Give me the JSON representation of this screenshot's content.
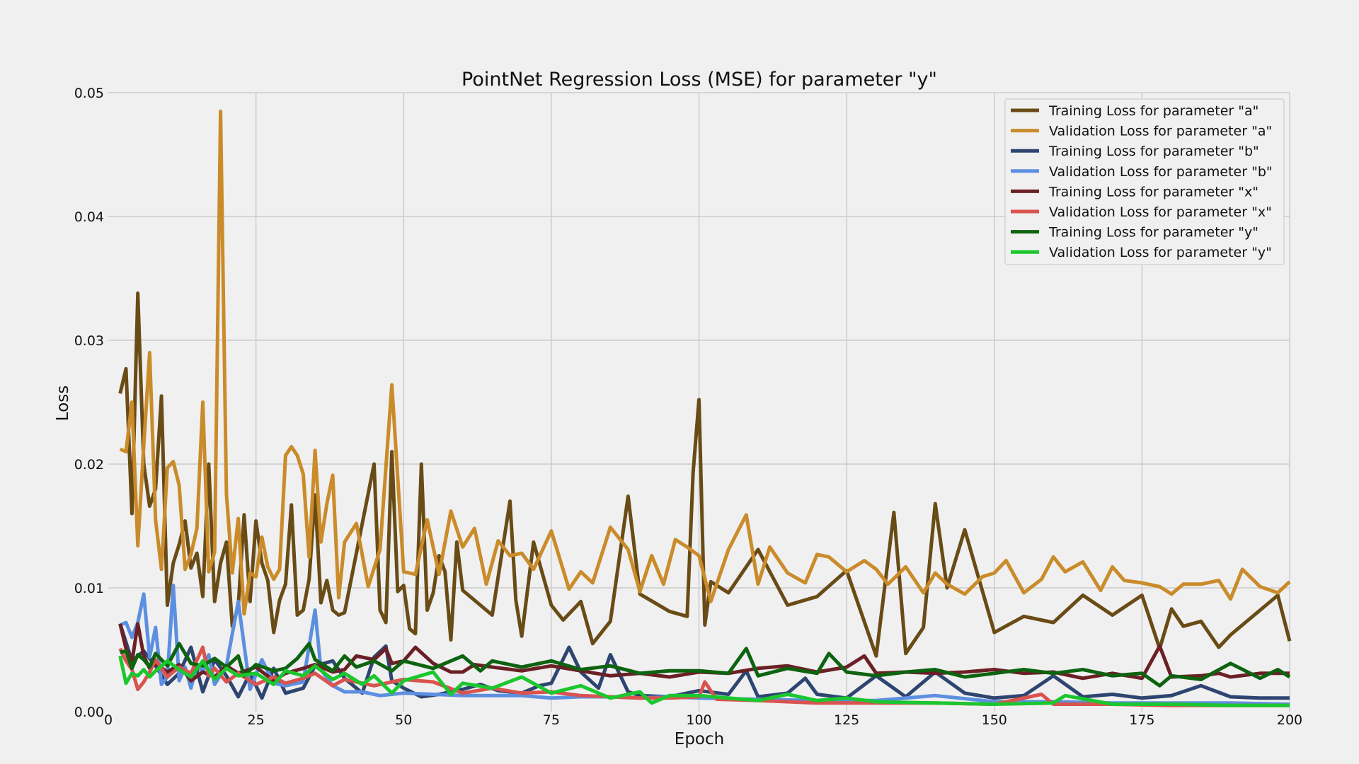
{
  "chart_data": {
    "type": "line",
    "title": "PointNet Regression Loss (MSE) for parameter \"y\"",
    "xlabel": "Epoch",
    "ylabel": "Loss",
    "xlim": [
      0,
      200
    ],
    "ylim": [
      0,
      0.05
    ],
    "xticks": [
      0,
      25,
      50,
      75,
      100,
      125,
      150,
      175,
      200
    ],
    "yticks": [
      0.0,
      0.01,
      0.02,
      0.03,
      0.04,
      0.05
    ],
    "xtick_labels": [
      "0",
      "25",
      "50",
      "75",
      "100",
      "125",
      "150",
      "175",
      "200"
    ],
    "ytick_labels": [
      "0.00",
      "0.01",
      "0.02",
      "0.03",
      "0.04",
      "0.05"
    ],
    "grid": true,
    "legend_position": "top-right",
    "series": [
      {
        "name": "Training Loss for parameter \"a\"",
        "color": "#694b16",
        "x": [
          2,
          3,
          4,
          5,
          6,
          7,
          8,
          9,
          10,
          11,
          12,
          13,
          14,
          15,
          16,
          17,
          18,
          19,
          20,
          21,
          22,
          23,
          24,
          25,
          26,
          27,
          28,
          29,
          30,
          31,
          32,
          33,
          34,
          35,
          36,
          37,
          38,
          39,
          40,
          45,
          46,
          47,
          48,
          49,
          50,
          51,
          52,
          53,
          54,
          55,
          56,
          57,
          58,
          59,
          60,
          65,
          68,
          69,
          70,
          72,
          75,
          77,
          80,
          82,
          85,
          88,
          90,
          95,
          98,
          99,
          100,
          101,
          102,
          105,
          110,
          115,
          120,
          125,
          130,
          133,
          135,
          138,
          140,
          142,
          145,
          150,
          155,
          160,
          165,
          170,
          175,
          178,
          180,
          182,
          185,
          188,
          190,
          195,
          198,
          200
        ],
        "y": [
          0.0257,
          0.0277,
          0.016,
          0.0338,
          0.02,
          0.0166,
          0.018,
          0.0255,
          0.0086,
          0.012,
          0.0135,
          0.0154,
          0.0116,
          0.0128,
          0.0093,
          0.02,
          0.0089,
          0.012,
          0.0137,
          0.0069,
          0.0085,
          0.0159,
          0.0089,
          0.0154,
          0.012,
          0.0106,
          0.0064,
          0.009,
          0.0103,
          0.0167,
          0.0078,
          0.0082,
          0.0107,
          0.0175,
          0.0088,
          0.0106,
          0.0082,
          0.0078,
          0.008,
          0.02,
          0.0082,
          0.0072,
          0.021,
          0.0097,
          0.0102,
          0.0067,
          0.0063,
          0.02,
          0.0082,
          0.0096,
          0.0126,
          0.0113,
          0.0058,
          0.0137,
          0.0098,
          0.0078,
          0.017,
          0.009,
          0.0061,
          0.0137,
          0.0086,
          0.0074,
          0.0089,
          0.0055,
          0.0073,
          0.0174,
          0.0095,
          0.0081,
          0.0077,
          0.0193,
          0.0252,
          0.007,
          0.0105,
          0.0096,
          0.0131,
          0.0086,
          0.0093,
          0.0114,
          0.0045,
          0.0161,
          0.0047,
          0.0068,
          0.0168,
          0.01,
          0.0147,
          0.0064,
          0.0077,
          0.0072,
          0.0094,
          0.0078,
          0.0094,
          0.0051,
          0.0083,
          0.0069,
          0.0073,
          0.0052,
          0.0062,
          0.0082,
          0.0094,
          0.0057
        ]
      },
      {
        "name": "Validation Loss for parameter \"a\"",
        "color": "#ca8b2a",
        "x": [
          2,
          3,
          4,
          5,
          6,
          7,
          8,
          9,
          10,
          11,
          12,
          13,
          14,
          15,
          16,
          17,
          18,
          19,
          20,
          21,
          22,
          23,
          24,
          25,
          26,
          27,
          28,
          29,
          30,
          31,
          32,
          33,
          34,
          35,
          36,
          37,
          38,
          39,
          40,
          42,
          44,
          46,
          48,
          50,
          52,
          54,
          56,
          58,
          60,
          62,
          64,
          66,
          68,
          70,
          72,
          75,
          78,
          80,
          82,
          85,
          88,
          90,
          92,
          94,
          96,
          98,
          100,
          102,
          105,
          108,
          110,
          112,
          115,
          118,
          120,
          122,
          125,
          128,
          130,
          132,
          135,
          138,
          140,
          142,
          145,
          148,
          150,
          152,
          155,
          158,
          160,
          162,
          165,
          168,
          170,
          172,
          175,
          178,
          180,
          182,
          185,
          188,
          190,
          192,
          195,
          198,
          200
        ],
        "y": [
          0.0212,
          0.021,
          0.025,
          0.0134,
          0.0215,
          0.029,
          0.0155,
          0.0115,
          0.0197,
          0.0202,
          0.0183,
          0.0115,
          0.0127,
          0.0148,
          0.025,
          0.0113,
          0.0129,
          0.0485,
          0.0176,
          0.0112,
          0.0156,
          0.0079,
          0.0112,
          0.0109,
          0.0141,
          0.0117,
          0.0107,
          0.0115,
          0.0207,
          0.0214,
          0.0207,
          0.0192,
          0.0125,
          0.0211,
          0.0137,
          0.0168,
          0.0191,
          0.0092,
          0.0137,
          0.0152,
          0.0101,
          0.0131,
          0.0264,
          0.0113,
          0.0111,
          0.0155,
          0.0111,
          0.0162,
          0.0133,
          0.0148,
          0.0103,
          0.0138,
          0.0126,
          0.0128,
          0.0115,
          0.0146,
          0.0099,
          0.0113,
          0.0104,
          0.0149,
          0.0131,
          0.0097,
          0.0126,
          0.0103,
          0.0139,
          0.0133,
          0.0126,
          0.0089,
          0.0131,
          0.0159,
          0.0103,
          0.0133,
          0.0112,
          0.0104,
          0.0127,
          0.0125,
          0.0113,
          0.0122,
          0.0115,
          0.0103,
          0.0117,
          0.0096,
          0.0112,
          0.0103,
          0.0095,
          0.0109,
          0.0112,
          0.0122,
          0.0096,
          0.0107,
          0.0125,
          0.0113,
          0.0121,
          0.0098,
          0.0117,
          0.0106,
          0.0104,
          0.0101,
          0.0095,
          0.0103,
          0.0103,
          0.0106,
          0.0091,
          0.0115,
          0.0101,
          0.0096,
          0.0105
        ]
      },
      {
        "name": "Training Loss for parameter \"b\"",
        "color": "#2e4570",
        "x": [
          2,
          4,
          6,
          8,
          10,
          12,
          14,
          16,
          18,
          20,
          22,
          24,
          26,
          28,
          30,
          33,
          35,
          38,
          40,
          43,
          45,
          47,
          48,
          50,
          53,
          56,
          60,
          63,
          66,
          70,
          73,
          75,
          78,
          80,
          83,
          85,
          88,
          90,
          95,
          100,
          105,
          108,
          110,
          115,
          118,
          120,
          125,
          130,
          135,
          140,
          145,
          150,
          155,
          160,
          165,
          170,
          175,
          180,
          185,
          190,
          195,
          200
        ],
        "y": [
          0.0071,
          0.0041,
          0.0049,
          0.0037,
          0.0022,
          0.0031,
          0.0052,
          0.0016,
          0.0042,
          0.0029,
          0.0012,
          0.0031,
          0.0011,
          0.0035,
          0.0015,
          0.0019,
          0.0037,
          0.0041,
          0.0027,
          0.0015,
          0.0044,
          0.0053,
          0.0025,
          0.0019,
          0.0012,
          0.0014,
          0.0018,
          0.0022,
          0.0017,
          0.0015,
          0.0021,
          0.0023,
          0.0052,
          0.0032,
          0.0019,
          0.0046,
          0.0016,
          0.0013,
          0.0012,
          0.0017,
          0.0014,
          0.0033,
          0.0012,
          0.0015,
          0.0027,
          0.0014,
          0.0011,
          0.0029,
          0.0012,
          0.0032,
          0.0015,
          0.0011,
          0.0013,
          0.0029,
          0.0012,
          0.0014,
          0.0011,
          0.0013,
          0.0021,
          0.0012,
          0.0011,
          0.0011
        ]
      },
      {
        "name": "Validation Loss for parameter \"b\"",
        "color": "#5d8fe0",
        "x": [
          2,
          3,
          4,
          5,
          6,
          7,
          8,
          9,
          10,
          11,
          12,
          13,
          14,
          15,
          16,
          17,
          18,
          20,
          22,
          24,
          26,
          28,
          30,
          33,
          35,
          36,
          38,
          40,
          43,
          46,
          50,
          55,
          60,
          65,
          70,
          75,
          80,
          85,
          90,
          95,
          100,
          110,
          120,
          130,
          140,
          150,
          160,
          170,
          180,
          190,
          200
        ],
        "y": [
          0.007,
          0.0072,
          0.006,
          0.0072,
          0.0095,
          0.0044,
          0.0068,
          0.0022,
          0.0028,
          0.0102,
          0.0025,
          0.0036,
          0.0019,
          0.0038,
          0.0032,
          0.0046,
          0.0022,
          0.0037,
          0.0089,
          0.0018,
          0.0042,
          0.0023,
          0.0021,
          0.0024,
          0.0082,
          0.0034,
          0.0021,
          0.0016,
          0.0016,
          0.0013,
          0.0015,
          0.0014,
          0.0013,
          0.0013,
          0.0013,
          0.0011,
          0.0012,
          0.0012,
          0.0011,
          0.0012,
          0.0011,
          0.001,
          0.0009,
          0.0009,
          0.0013,
          0.0008,
          0.0008,
          0.0007,
          0.0007,
          0.0007,
          0.0006
        ]
      },
      {
        "name": "Training Loss for parameter \"x\"",
        "color": "#6b2025",
        "x": [
          2,
          3,
          4,
          5,
          6,
          7,
          8,
          10,
          12,
          14,
          16,
          18,
          20,
          22,
          25,
          28,
          30,
          33,
          35,
          38,
          40,
          42,
          45,
          47,
          48,
          50,
          52,
          55,
          58,
          60,
          62,
          65,
          70,
          75,
          80,
          85,
          90,
          95,
          100,
          105,
          110,
          115,
          120,
          125,
          128,
          130,
          135,
          140,
          145,
          150,
          155,
          160,
          165,
          170,
          175,
          178,
          180,
          185,
          188,
          190,
          195,
          200
        ],
        "y": [
          0.0071,
          0.0051,
          0.004,
          0.0071,
          0.0045,
          0.0035,
          0.0039,
          0.0032,
          0.0038,
          0.0025,
          0.0032,
          0.0028,
          0.0037,
          0.0031,
          0.0036,
          0.0025,
          0.0031,
          0.0035,
          0.0038,
          0.0032,
          0.0034,
          0.0045,
          0.0042,
          0.0051,
          0.0039,
          0.0041,
          0.0052,
          0.0039,
          0.0032,
          0.0032,
          0.0038,
          0.0036,
          0.0033,
          0.0037,
          0.0033,
          0.0029,
          0.0031,
          0.0028,
          0.0032,
          0.0031,
          0.0035,
          0.0037,
          0.0032,
          0.0036,
          0.0045,
          0.0031,
          0.0032,
          0.0031,
          0.0032,
          0.0034,
          0.0031,
          0.0032,
          0.0027,
          0.0031,
          0.0027,
          0.0053,
          0.0028,
          0.0029,
          0.0031,
          0.0028,
          0.0031,
          0.0031
        ]
      },
      {
        "name": "Validation Loss for parameter \"x\"",
        "color": "#d9534f",
        "x": [
          2,
          3,
          4,
          5,
          6,
          7,
          8,
          10,
          12,
          14,
          16,
          17,
          18,
          20,
          22,
          25,
          28,
          30,
          33,
          35,
          38,
          40,
          45,
          50,
          55,
          60,
          65,
          70,
          75,
          80,
          85,
          90,
          95,
          100,
          101,
          103,
          110,
          120,
          130,
          140,
          150,
          158,
          160,
          170,
          180,
          190,
          200
        ],
        "y": [
          0.0051,
          0.0041,
          0.0034,
          0.0018,
          0.0024,
          0.0032,
          0.0042,
          0.0028,
          0.0036,
          0.0031,
          0.0052,
          0.0029,
          0.0035,
          0.0024,
          0.0031,
          0.0022,
          0.0028,
          0.0023,
          0.0027,
          0.0031,
          0.0021,
          0.0026,
          0.0021,
          0.0026,
          0.0024,
          0.0015,
          0.0019,
          0.0015,
          0.0016,
          0.0013,
          0.0012,
          0.0011,
          0.0011,
          0.0012,
          0.0024,
          0.001,
          0.0009,
          0.0007,
          0.0007,
          0.0007,
          0.0006,
          0.0014,
          0.0006,
          0.0006,
          0.0005,
          0.0005,
          0.0005
        ]
      },
      {
        "name": "Training Loss for parameter \"y\"",
        "color": "#0d6310",
        "x": [
          2,
          3,
          4,
          5,
          6,
          7,
          8,
          10,
          12,
          14,
          16,
          18,
          20,
          22,
          23,
          25,
          28,
          30,
          32,
          34,
          35,
          38,
          40,
          42,
          45,
          48,
          50,
          55,
          60,
          63,
          65,
          70,
          75,
          80,
          85,
          90,
          95,
          100,
          105,
          108,
          110,
          115,
          120,
          122,
          125,
          130,
          135,
          140,
          145,
          150,
          155,
          160,
          165,
          170,
          175,
          178,
          180,
          185,
          190,
          195,
          198,
          200
        ],
        "y": [
          0.0048,
          0.0049,
          0.0035,
          0.0046,
          0.0042,
          0.0036,
          0.0047,
          0.0037,
          0.0055,
          0.0039,
          0.0037,
          0.0043,
          0.0036,
          0.0045,
          0.0029,
          0.0038,
          0.0033,
          0.0035,
          0.0043,
          0.0055,
          0.0042,
          0.0033,
          0.0045,
          0.0036,
          0.0041,
          0.0033,
          0.0041,
          0.0035,
          0.0045,
          0.0033,
          0.0041,
          0.0036,
          0.0041,
          0.0034,
          0.0037,
          0.0031,
          0.0033,
          0.0033,
          0.0031,
          0.0051,
          0.0029,
          0.0035,
          0.0031,
          0.0047,
          0.0032,
          0.0029,
          0.0032,
          0.0034,
          0.0028,
          0.0031,
          0.0034,
          0.0031,
          0.0034,
          0.0029,
          0.0031,
          0.0021,
          0.0029,
          0.0026,
          0.0039,
          0.0027,
          0.0034,
          0.0028
        ]
      },
      {
        "name": "Validation Loss for parameter \"y\"",
        "color": "#1bc72e",
        "x": [
          2,
          3,
          4,
          5,
          6,
          7,
          8,
          10,
          12,
          14,
          16,
          18,
          20,
          22,
          25,
          28,
          30,
          33,
          35,
          38,
          40,
          43,
          45,
          48,
          50,
          55,
          58,
          60,
          65,
          70,
          75,
          80,
          85,
          90,
          92,
          95,
          100,
          105,
          110,
          115,
          120,
          125,
          130,
          140,
          150,
          160,
          162,
          170,
          180,
          190,
          200
        ],
        "y": [
          0.0045,
          0.0023,
          0.0031,
          0.0029,
          0.0034,
          0.0028,
          0.0033,
          0.0041,
          0.0034,
          0.0028,
          0.0041,
          0.0026,
          0.0035,
          0.0029,
          0.0031,
          0.0022,
          0.0033,
          0.0029,
          0.0037,
          0.0026,
          0.0031,
          0.0022,
          0.0029,
          0.0015,
          0.0025,
          0.0032,
          0.0014,
          0.0023,
          0.0019,
          0.0028,
          0.0015,
          0.0021,
          0.0011,
          0.0016,
          0.0007,
          0.0013,
          0.0013,
          0.0011,
          0.0009,
          0.0014,
          0.0009,
          0.0011,
          0.0008,
          0.0007,
          0.0006,
          0.0007,
          0.0013,
          0.0006,
          0.0006,
          0.0005,
          0.0005
        ]
      }
    ]
  }
}
